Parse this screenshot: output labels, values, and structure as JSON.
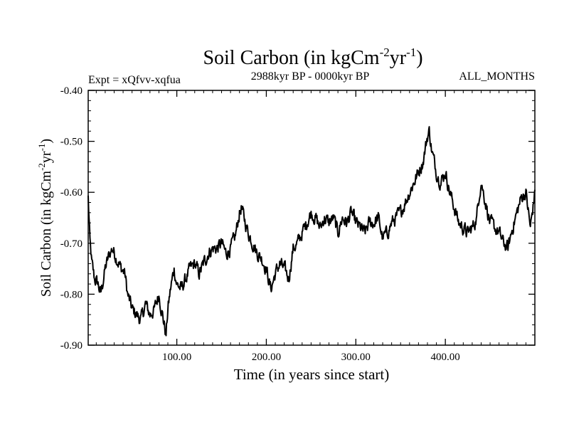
{
  "chart_data": {
    "type": "line",
    "title": "Soil Carbon (in kgCm",
    "title_sup1": "-2",
    "title_mid": "yr",
    "title_sup2": "-1",
    "title_end": ")",
    "subtitle_left": "Expt = xQfvv-xqfua",
    "subtitle_center": "2988kyr BP - 0000kyr BP",
    "subtitle_right": "ALL_MONTHS",
    "xlabel": "Time (in years since start)",
    "ylabel": "Soil Carbon (in kgCm",
    "ylabel_sup1": "-2",
    "ylabel_mid": "yr",
    "ylabel_sup2": "-1",
    "ylabel_end": ")",
    "xlim": [
      1,
      500
    ],
    "ylim": [
      -0.9,
      -0.4
    ],
    "x_ticks": [
      100,
      200,
      300,
      400
    ],
    "x_tick_labels": [
      "100.00",
      "200.00",
      "300.00",
      "400.00"
    ],
    "y_ticks": [
      -0.4,
      -0.5,
      -0.6,
      -0.7,
      -0.8,
      -0.9
    ],
    "y_tick_labels": [
      "-0.40",
      "-0.50",
      "-0.60",
      "-0.70",
      "-0.80",
      "-0.90"
    ],
    "line_color": "#000000",
    "anchors": {
      "x": [
        1,
        3,
        5,
        8,
        12,
        15,
        20,
        25,
        28,
        33,
        38,
        42,
        45,
        50,
        55,
        60,
        65,
        70,
        75,
        80,
        85,
        88,
        90,
        93,
        97,
        100,
        105,
        110,
        115,
        120,
        125,
        130,
        135,
        140,
        145,
        150,
        155,
        160,
        165,
        170,
        172,
        175,
        180,
        185,
        190,
        195,
        200,
        205,
        210,
        215,
        220,
        225,
        230,
        235,
        240,
        245,
        250,
        255,
        260,
        265,
        270,
        275,
        280,
        285,
        290,
        295,
        300,
        305,
        310,
        315,
        320,
        325,
        330,
        335,
        340,
        345,
        350,
        355,
        360,
        365,
        370,
        375,
        380,
        382,
        385,
        390,
        395,
        400,
        405,
        410,
        415,
        420,
        425,
        430,
        435,
        438,
        440,
        445,
        450,
        455,
        460,
        465,
        470,
        475,
        480,
        485,
        490,
        495,
        500
      ],
      "y": [
        -0.61,
        -0.7,
        -0.74,
        -0.77,
        -0.78,
        -0.8,
        -0.75,
        -0.72,
        -0.71,
        -0.73,
        -0.75,
        -0.76,
        -0.8,
        -0.83,
        -0.84,
        -0.85,
        -0.82,
        -0.84,
        -0.83,
        -0.8,
        -0.85,
        -0.88,
        -0.83,
        -0.79,
        -0.75,
        -0.78,
        -0.79,
        -0.77,
        -0.75,
        -0.74,
        -0.76,
        -0.74,
        -0.72,
        -0.71,
        -0.71,
        -0.7,
        -0.72,
        -0.71,
        -0.69,
        -0.64,
        -0.63,
        -0.65,
        -0.68,
        -0.7,
        -0.72,
        -0.73,
        -0.75,
        -0.79,
        -0.76,
        -0.74,
        -0.75,
        -0.77,
        -0.71,
        -0.7,
        -0.68,
        -0.66,
        -0.64,
        -0.65,
        -0.67,
        -0.65,
        -0.66,
        -0.65,
        -0.68,
        -0.65,
        -0.66,
        -0.64,
        -0.66,
        -0.67,
        -0.68,
        -0.66,
        -0.66,
        -0.65,
        -0.69,
        -0.68,
        -0.66,
        -0.65,
        -0.64,
        -0.62,
        -0.6,
        -0.58,
        -0.56,
        -0.54,
        -0.49,
        -0.48,
        -0.52,
        -0.56,
        -0.58,
        -0.56,
        -0.6,
        -0.63,
        -0.66,
        -0.67,
        -0.68,
        -0.67,
        -0.65,
        -0.6,
        -0.58,
        -0.62,
        -0.66,
        -0.67,
        -0.68,
        -0.7,
        -0.71,
        -0.67,
        -0.64,
        -0.61,
        -0.6,
        -0.67,
        -0.6
      ]
    }
  }
}
